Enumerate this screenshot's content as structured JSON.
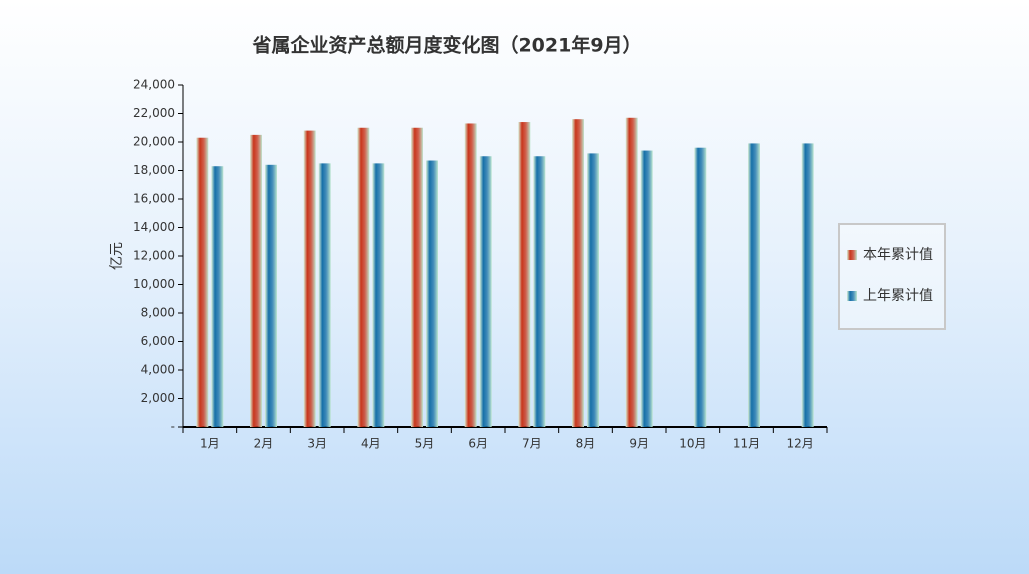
{
  "chart_data": {
    "type": "bar",
    "title": "省属企业资产总额月度变化图（2021年9月）",
    "y_label": "亿元",
    "categories": [
      "1月",
      "2月",
      "3月",
      "4月",
      "5月",
      "6月",
      "7月",
      "8月",
      "9月",
      "10月",
      "11月",
      "12月"
    ],
    "series": [
      {
        "name": "本年累计值",
        "color": "#c8361c",
        "values": [
          20300,
          20500,
          20800,
          21000,
          21000,
          21300,
          21400,
          21600,
          21700,
          null,
          null,
          null
        ]
      },
      {
        "name": "上年累计值",
        "color": "#1670a8",
        "values": [
          18300,
          18400,
          18500,
          18500,
          18700,
          19000,
          19000,
          19200,
          19400,
          19600,
          19900,
          19900
        ]
      }
    ],
    "ylim": [
      0,
      24000
    ],
    "yticks": [
      {
        "value": 0,
        "label": "-"
      },
      {
        "value": 2000,
        "label": "2,000"
      },
      {
        "value": 4000,
        "label": "4,000"
      },
      {
        "value": 6000,
        "label": "6,000"
      },
      {
        "value": 8000,
        "label": "8,000"
      },
      {
        "value": 10000,
        "label": "10,000"
      },
      {
        "value": 12000,
        "label": "12,000"
      },
      {
        "value": 14000,
        "label": "14,000"
      },
      {
        "value": 16000,
        "label": "16,000"
      },
      {
        "value": 18000,
        "label": "18,000"
      },
      {
        "value": 20000,
        "label": "20,000"
      },
      {
        "value": 22000,
        "label": "22,000"
      },
      {
        "value": 24000,
        "label": "24,000"
      }
    ],
    "grid": false,
    "legend": "right"
  }
}
